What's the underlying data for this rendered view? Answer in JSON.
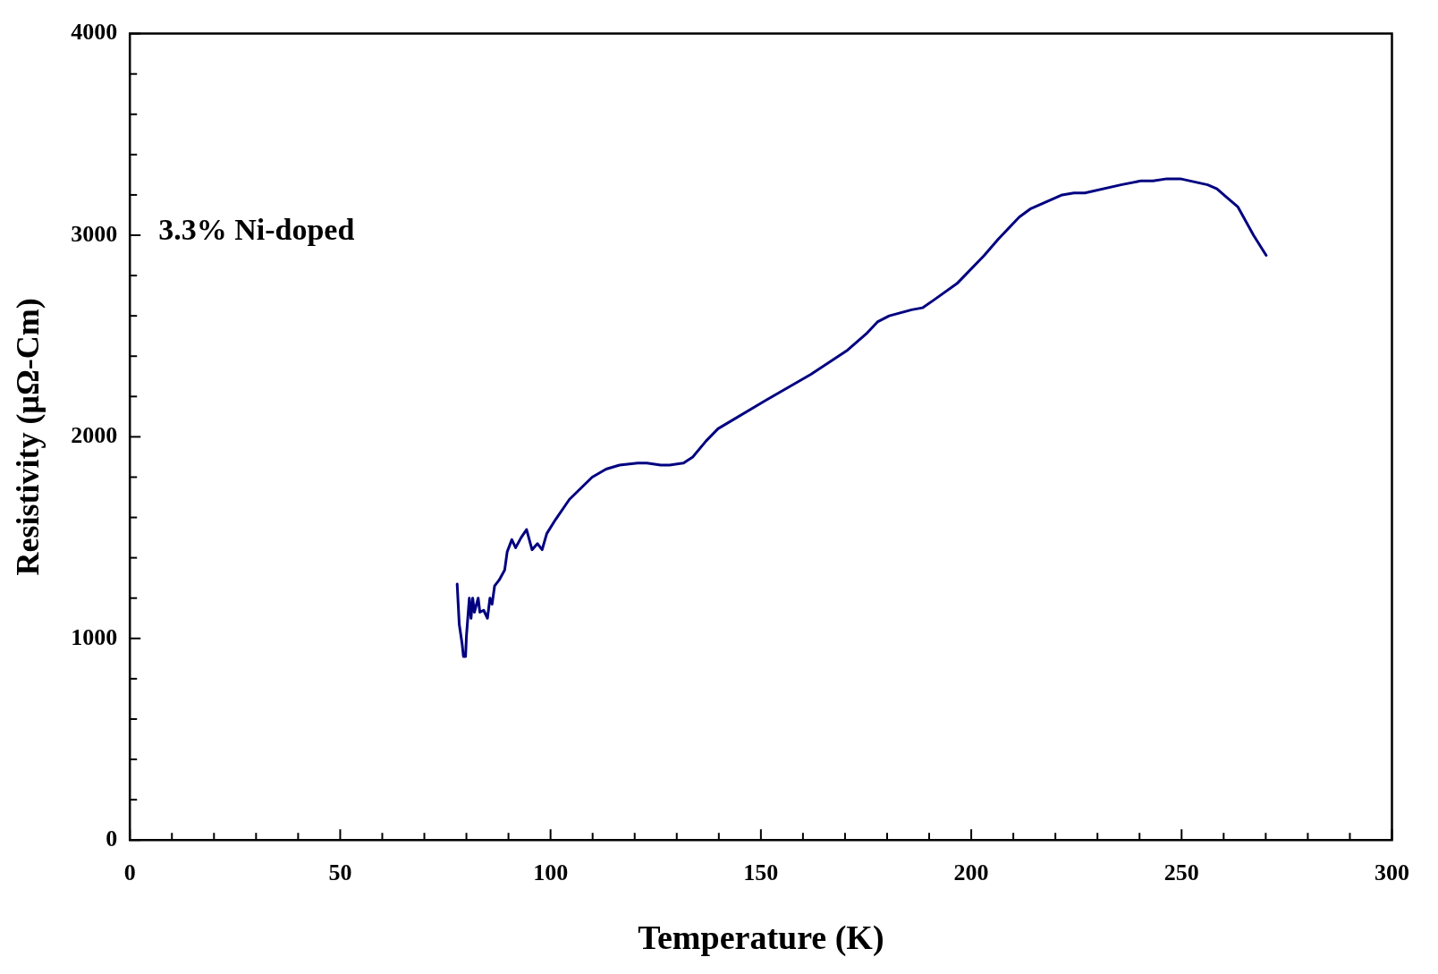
{
  "chart_data": {
    "type": "line",
    "xlabel": "Temperature (K)",
    "ylabel": "Resistivity (μΩ-Cm)",
    "annotations": [
      "3.3% Ni-doped"
    ],
    "xlim": [
      0,
      300
    ],
    "ylim": [
      0,
      4000
    ],
    "grid": false,
    "legend": false,
    "marker": "none",
    "line_style": "solid",
    "xticks": [
      0,
      {
        "value": 10,
        "label": null
      },
      {
        "value": 20,
        "label": null
      },
      {
        "value": 30,
        "label": null
      },
      {
        "value": 40,
        "label": null
      },
      50,
      {
        "value": 60,
        "label": null
      },
      {
        "value": 70,
        "label": null
      },
      {
        "value": 80,
        "label": null
      },
      {
        "value": 90,
        "label": null
      },
      100,
      {
        "value": 110,
        "label": null
      },
      {
        "value": 120,
        "label": null
      },
      {
        "value": 130,
        "label": null
      },
      {
        "value": 140,
        "label": null
      },
      150,
      {
        "value": 160,
        "label": null
      },
      {
        "value": 170,
        "label": null
      },
      {
        "value": 180,
        "label": null
      },
      {
        "value": 190,
        "label": null
      },
      200,
      {
        "value": 210,
        "label": null
      },
      {
        "value": 220,
        "label": null
      },
      {
        "value": 230,
        "label": null
      },
      {
        "value": 240,
        "label": null
      },
      250,
      {
        "value": 260,
        "label": null
      },
      {
        "value": 270,
        "label": null
      },
      {
        "value": 280,
        "label": null
      },
      {
        "value": 290,
        "label": null
      },
      300
    ],
    "yticks": [
      0,
      {
        "value": 200,
        "label": null
      },
      {
        "value": 400,
        "label": null
      },
      {
        "value": 600,
        "label": null
      },
      {
        "value": 800,
        "label": null
      },
      1000,
      {
        "value": 1200,
        "label": null
      },
      {
        "value": 1400,
        "label": null
      },
      {
        "value": 1600,
        "label": null
      },
      {
        "value": 1800,
        "label": null
      },
      2000,
      {
        "value": 2200,
        "label": null
      },
      {
        "value": 2400,
        "label": null
      },
      {
        "value": 2600,
        "label": null
      },
      {
        "value": 2800,
        "label": null
      },
      3000,
      {
        "value": 3200,
        "label": null
      },
      {
        "value": 3400,
        "label": null
      },
      {
        "value": 3600,
        "label": null
      },
      {
        "value": 3800,
        "label": null
      },
      4000
    ],
    "series": [
      {
        "color": "#000080",
        "x": [
          77.8,
          78.3,
          79.0,
          79.3,
          79.8,
          80.0,
          80.4,
          80.7,
          81.1,
          81.5,
          81.9,
          82.8,
          83.2,
          84.1,
          85.0,
          85.6,
          86.1,
          86.7,
          87.8,
          89.1,
          89.7,
          90.8,
          91.7,
          93.0,
          94.3,
          95.6,
          96.9,
          98.0,
          99.1,
          101.2,
          104.5,
          109.9,
          113.2,
          116.4,
          120.7,
          122.9,
          126.2,
          128.3,
          131.6,
          133.8,
          137.0,
          139.8,
          151.1,
          161.9,
          170.6,
          175.0,
          177.7,
          180.5,
          185.8,
          188.4,
          191.2,
          196.6,
          203.1,
          206.4,
          211.4,
          214.0,
          221.6,
          224.4,
          227.0,
          235.6,
          240.4,
          243.2,
          246.5,
          249.7,
          256.2,
          258.4,
          260.6,
          263.4,
          267.1,
          270.1
        ],
        "values": [
          1270,
          1070,
          970,
          910,
          910,
          1010,
          1120,
          1200,
          1100,
          1200,
          1130,
          1200,
          1130,
          1140,
          1100,
          1200,
          1170,
          1260,
          1290,
          1340,
          1430,
          1490,
          1450,
          1500,
          1540,
          1440,
          1470,
          1440,
          1520,
          1590,
          1690,
          1800,
          1840,
          1860,
          1870,
          1870,
          1860,
          1860,
          1870,
          1900,
          1980,
          2040,
          2180,
          2310,
          2430,
          2510,
          2570,
          2600,
          2630,
          2640,
          2680,
          2760,
          2900,
          2980,
          3090,
          3130,
          3200,
          3210,
          3210,
          3250,
          3270,
          3270,
          3280,
          3280,
          3250,
          3230,
          3190,
          3140,
          3000,
          2900
        ]
      }
    ]
  }
}
